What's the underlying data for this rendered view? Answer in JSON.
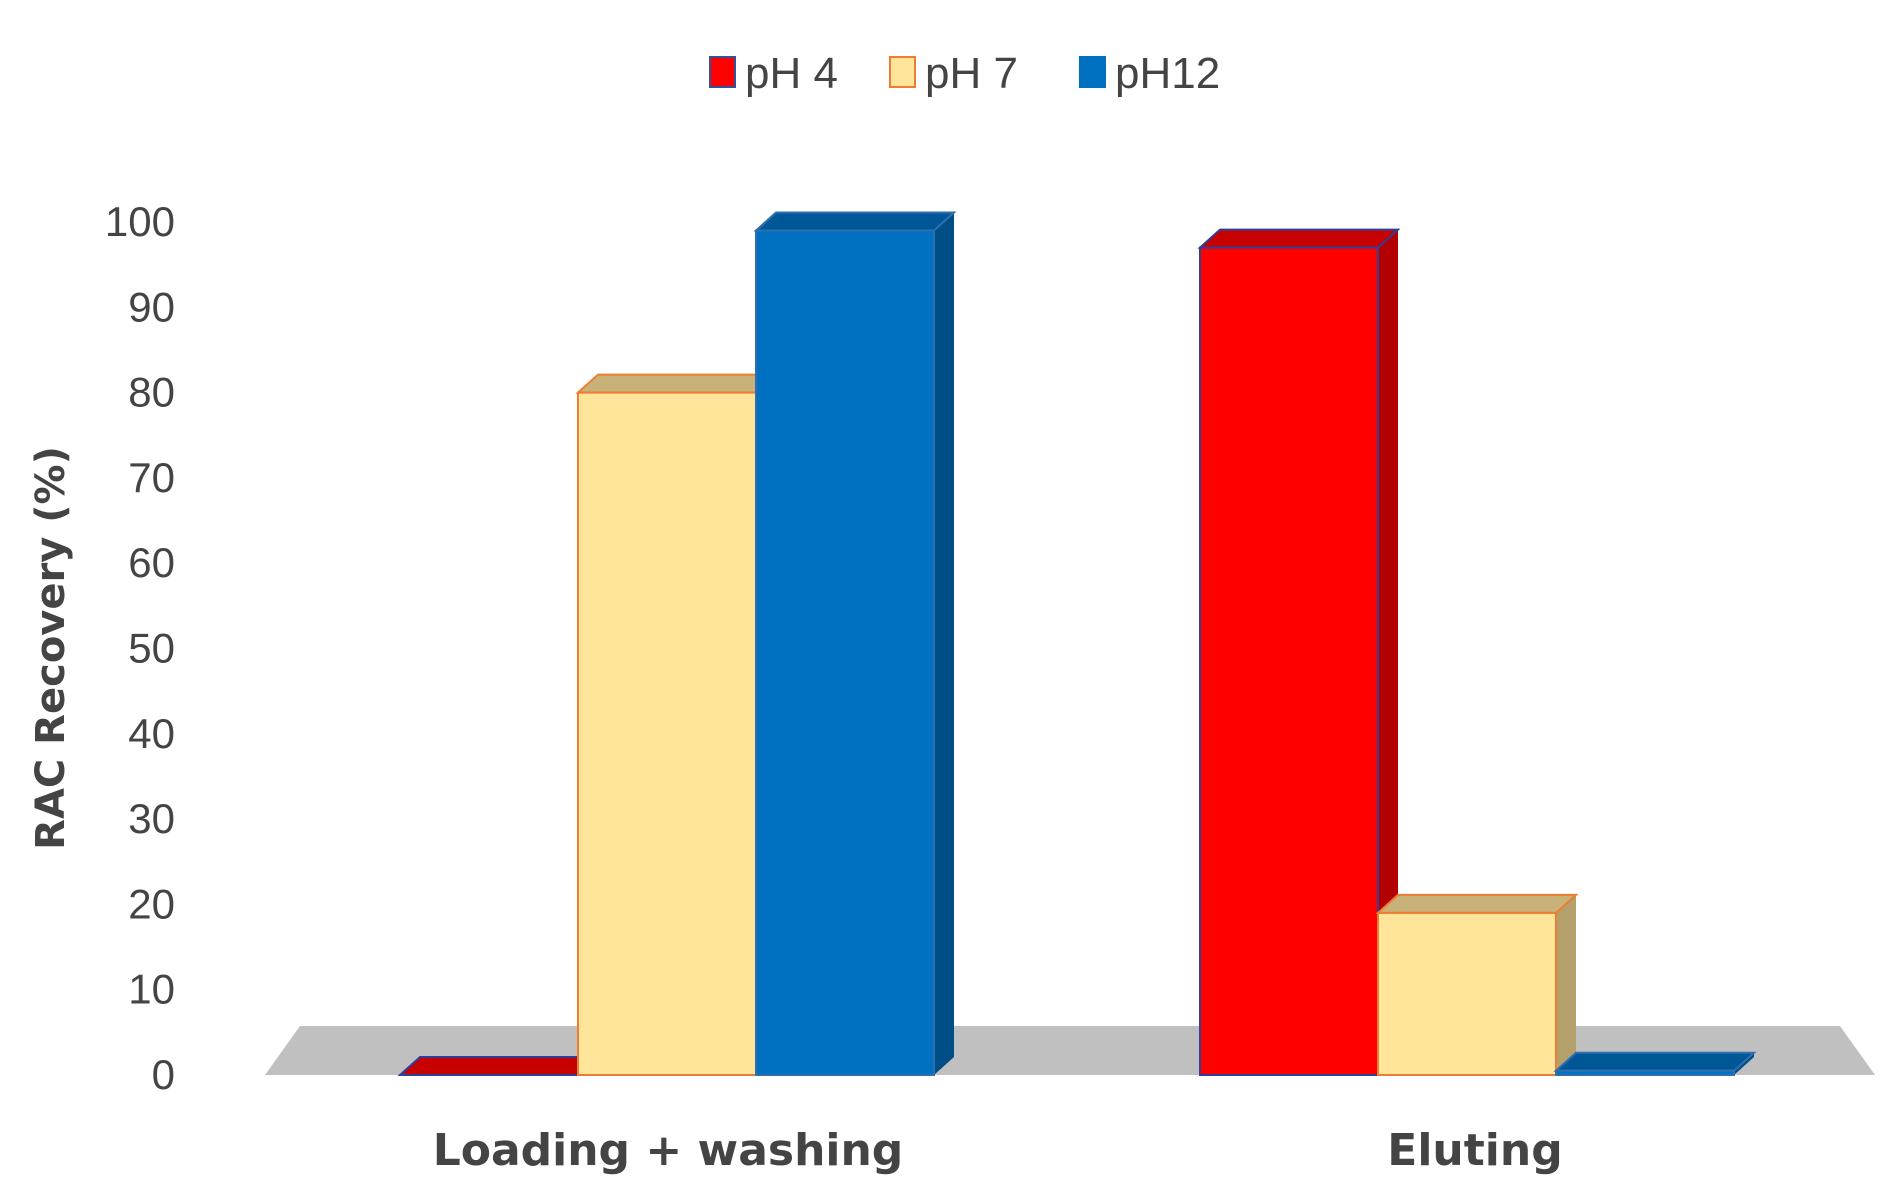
{
  "chart_data": {
    "type": "bar",
    "style": "3d-clustered-column",
    "title": "",
    "xlabel": "",
    "ylabel": "RAC Recovery (%)",
    "ylim": [
      0,
      100
    ],
    "yticks": [
      "0",
      "10",
      "20",
      "30",
      "40",
      "50",
      "60",
      "70",
      "80",
      "90",
      "100"
    ],
    "grid": false,
    "legend_position": "top-center",
    "categories": [
      "Loading + washing",
      "Eluting"
    ],
    "series": [
      {
        "name": "pH 4",
        "values": [
          0,
          97
        ],
        "color": "#ff0000"
      },
      {
        "name": "pH 7",
        "values": [
          80,
          19
        ],
        "color": "#ffe599"
      },
      {
        "name": "pH12",
        "values": [
          99,
          0.5
        ],
        "color": "#0070c0"
      }
    ]
  }
}
